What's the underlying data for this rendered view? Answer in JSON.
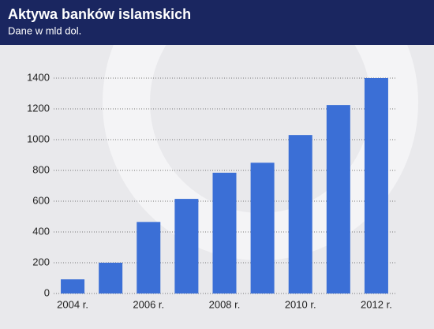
{
  "chart_data": {
    "type": "bar",
    "title": "Aktywa banków islamskich",
    "subtitle": "Dane w mld dol.",
    "categories": [
      "2004 r.",
      null,
      "2006 r.",
      null,
      "2008 r.",
      null,
      "2010 r.",
      null,
      "2012 r."
    ],
    "values": [
      92,
      200,
      465,
      615,
      785,
      850,
      1030,
      1225,
      1400
    ],
    "color": "#3b6fd6",
    "ylim": [
      0,
      1400
    ],
    "yticks": [
      0,
      200,
      400,
      600,
      800,
      1000,
      1200,
      1400
    ],
    "grid": true
  }
}
